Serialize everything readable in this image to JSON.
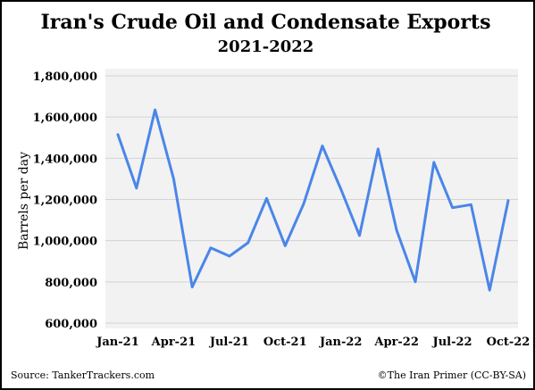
{
  "chart_data": {
    "type": "line",
    "title": "Iran's Crude Oil and Condensate Exports",
    "subtitle": "2021-2022",
    "xlabel": "",
    "ylabel": "Barrels per day",
    "x": [
      "Jan-21",
      "Feb-21",
      "Mar-21",
      "Apr-21",
      "May-21",
      "Jun-21",
      "Jul-21",
      "Aug-21",
      "Sep-21",
      "Oct-21",
      "Nov-21",
      "Dec-21",
      "Jan-22",
      "Feb-22",
      "Mar-22",
      "Apr-22",
      "May-22",
      "Jun-22",
      "Jul-22",
      "Aug-22",
      "Sep-22",
      "Oct-22"
    ],
    "x_tick_labels": [
      "Jan-21",
      "Apr-21",
      "Jul-21",
      "Oct-21",
      "Jan-22",
      "Apr-22",
      "Jul-22",
      "Oct-22"
    ],
    "y_tick_labels": [
      "1,800,000",
      "1,600,000",
      "1,400,000",
      "1,200,000",
      "1,000,000",
      "800,000",
      "600,000"
    ],
    "y_ticks": [
      1800000,
      1600000,
      1400000,
      1200000,
      1000000,
      800000,
      600000
    ],
    "ylim": [
      600000,
      1800000
    ],
    "grid": true,
    "series": [
      {
        "color": "#4a86e8",
        "values": [
          1515000,
          1255000,
          1635000,
          1300000,
          775000,
          965000,
          925000,
          990000,
          1205000,
          975000,
          1180000,
          1460000,
          1250000,
          1025000,
          1445000,
          1050000,
          800000,
          1380000,
          1160000,
          1175000,
          760000,
          1195000
        ]
      }
    ]
  },
  "footer": {
    "source": "Source: TankerTrackers.com",
    "credit": "©The Iran Primer (CC-BY-SA)"
  }
}
